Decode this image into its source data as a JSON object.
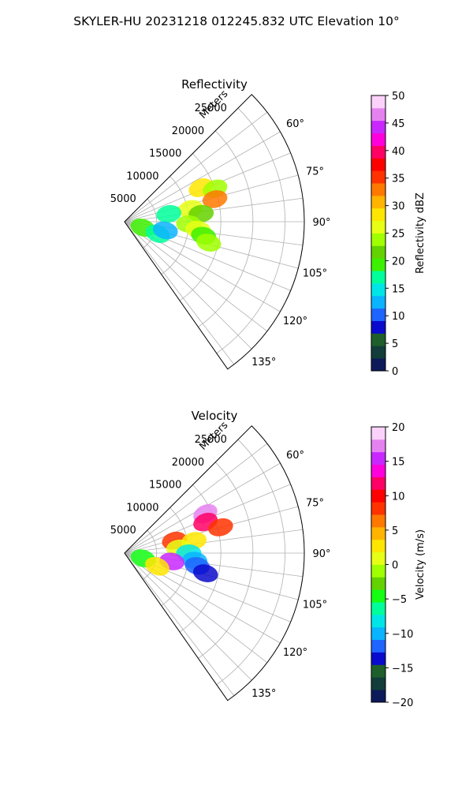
{
  "figure_title": "SKYLER-HU  20231218  012245.832 UTC Elevation 10°",
  "chart_data": [
    {
      "type": "ppi-sector",
      "title": "Reflectivity",
      "radial_label": "Meters",
      "radial_ticks": [
        5000,
        10000,
        15000,
        20000,
        25000
      ],
      "radial_tick_labels": [
        "5000",
        "10000",
        "15000",
        "20000",
        "25000"
      ],
      "azimuth_ticks": [
        60,
        75,
        90,
        105,
        120,
        135
      ],
      "azimuth_tick_labels": [
        "60°",
        "75°",
        "90°",
        "105°",
        "120°",
        "135°"
      ],
      "azimuth_range_deg": [
        45,
        145
      ],
      "range_max_m": 28000,
      "grid": true,
      "colorbar": {
        "label": "Reflectivity dBZ",
        "min": 0,
        "max": 50,
        "ticks": [
          0,
          5,
          10,
          15,
          20,
          25,
          30,
          35,
          40,
          45,
          50
        ],
        "tick_labels": [
          "0",
          "5",
          "10",
          "15",
          "20",
          "25",
          "30",
          "35",
          "40",
          "45",
          "50"
        ],
        "colors": [
          "#0d1a5a",
          "#123d3a",
          "#1e5f2c",
          "#0a0acc",
          "#1e64ff",
          "#0ab4ff",
          "#00e6e6",
          "#00ff9a",
          "#3cf000",
          "#64d200",
          "#a0ff00",
          "#e6ff14",
          "#ffe600",
          "#ffb400",
          "#ff7800",
          "#ff3200",
          "#ff0000",
          "#ff0064",
          "#ff00dc",
          "#c828ff",
          "#e682f0",
          "#fad2fa"
        ]
      },
      "echo_cells": [
        {
          "az": 66,
          "r": 13000,
          "value": 28
        },
        {
          "az": 70,
          "r": 15000,
          "value": 24
        },
        {
          "az": 76,
          "r": 14500,
          "value": 33
        },
        {
          "az": 79,
          "r": 10500,
          "value": 26
        },
        {
          "az": 80,
          "r": 7000,
          "value": 18
        },
        {
          "az": 84,
          "r": 12000,
          "value": 22
        },
        {
          "az": 92,
          "r": 10000,
          "value": 24
        },
        {
          "az": 96,
          "r": 11500,
          "value": 27
        },
        {
          "az": 100,
          "r": 12500,
          "value": 19
        },
        {
          "az": 104,
          "r": 13500,
          "value": 23
        },
        {
          "az": 108,
          "r": 3000,
          "value": 20
        },
        {
          "az": 110,
          "r": 5500,
          "value": 18
        },
        {
          "az": 102,
          "r": 6500,
          "value": 12
        }
      ]
    },
    {
      "type": "ppi-sector",
      "title": "Velocity",
      "radial_label": "Meters",
      "radial_ticks": [
        5000,
        10000,
        15000,
        20000,
        25000
      ],
      "radial_tick_labels": [
        "5000",
        "10000",
        "15000",
        "20000",
        "25000"
      ],
      "azimuth_ticks": [
        60,
        75,
        90,
        105,
        120,
        135
      ],
      "azimuth_tick_labels": [
        "60°",
        "75°",
        "90°",
        "105°",
        "120°",
        "135°"
      ],
      "azimuth_range_deg": [
        45,
        145
      ],
      "range_max_m": 28000,
      "grid": true,
      "colorbar": {
        "label": "Velocity (m/s)",
        "min": -20,
        "max": 20,
        "ticks": [
          -20,
          -15,
          -10,
          -5,
          0,
          5,
          10,
          15,
          20
        ],
        "tick_labels": [
          "−20",
          "−15",
          "−10",
          "−5",
          "0",
          "5",
          "10",
          "15",
          "20"
        ],
        "colors": [
          "#0d1a5a",
          "#123d3a",
          "#1e5f2c",
          "#0a0acc",
          "#1e64ff",
          "#0ab4ff",
          "#00e6e6",
          "#00ff9a",
          "#14ff14",
          "#64d200",
          "#a0ff00",
          "#e6ff14",
          "#ffe600",
          "#ffb400",
          "#ff7800",
          "#ff3200",
          "#ff0000",
          "#ff0064",
          "#ff00dc",
          "#c828ff",
          "#e682f0",
          "#fad2fa"
        ]
      },
      "echo_cells": [
        {
          "az": 64,
          "r": 14000,
          "value": 17
        },
        {
          "az": 69,
          "r": 13500,
          "value": 11
        },
        {
          "az": 75,
          "r": 15500,
          "value": 9
        },
        {
          "az": 76,
          "r": 8000,
          "value": 8
        },
        {
          "az": 80,
          "r": 11000,
          "value": 2
        },
        {
          "az": 85,
          "r": 8500,
          "value": 0
        },
        {
          "az": 90,
          "r": 10000,
          "value": -8
        },
        {
          "az": 96,
          "r": 11000,
          "value": -10
        },
        {
          "az": 100,
          "r": 11500,
          "value": -11
        },
        {
          "az": 104,
          "r": 13000,
          "value": -14
        },
        {
          "az": 100,
          "r": 7500,
          "value": 15
        },
        {
          "az": 106,
          "r": 3000,
          "value": -4
        },
        {
          "az": 112,
          "r": 5500,
          "value": 3
        }
      ]
    }
  ]
}
